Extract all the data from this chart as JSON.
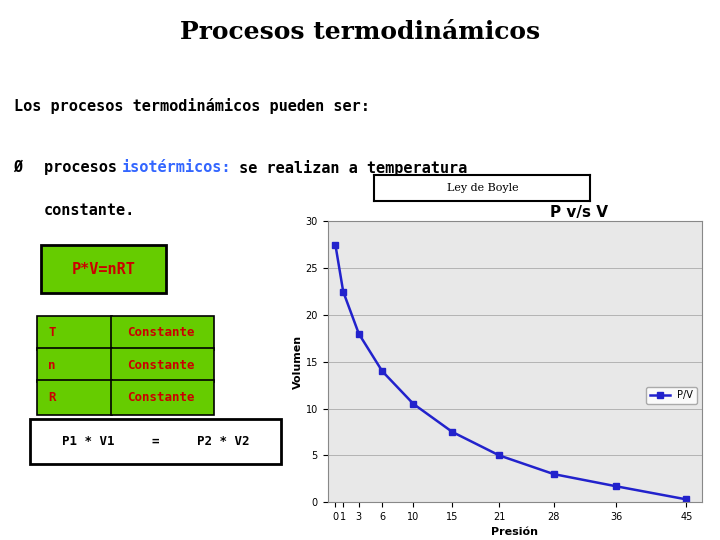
{
  "title": "Procesos termodinámicos",
  "title_bg": "#c8c8a0",
  "slide_bg": "#ffffff",
  "body_text1": "Los procesos termodinámicos pueden ser:",
  "formula_text": "P*V=nRT",
  "formula_bg": "#66cc00",
  "formula_text_color": "#cc0000",
  "table_rows": [
    [
      "T",
      "Constante"
    ],
    [
      "n",
      "Constante"
    ],
    [
      "R",
      "Constante"
    ]
  ],
  "table_bg": "#66cc00",
  "table_text_color": "#cc0000",
  "eq_text": "P1 * V1     =     P2 * V2",
  "chart_title": "P v/s V",
  "chart_xlabel": "Presión",
  "chart_ylabel": "Volumen",
  "chart_legend": "P/V",
  "ley_de_boyle_label": "Ley de Boyle",
  "x_data": [
    0,
    1,
    3,
    6,
    10,
    15,
    21,
    28,
    36,
    45
  ],
  "y_data": [
    27.5,
    22.5,
    18.0,
    14.0,
    10.5,
    7.5,
    5.0,
    3.0,
    1.7,
    0.3
  ],
  "line_color": "#2222cc",
  "marker": "s",
  "x_ticks": [
    0,
    1,
    3,
    6,
    10,
    15,
    21,
    28,
    36,
    45
  ],
  "y_ticks": [
    0,
    5,
    10,
    15,
    20,
    25,
    30
  ],
  "ylim": [
    0,
    30
  ],
  "xlim": [
    -1,
    47
  ],
  "isotermicos_color": "#3366ff",
  "title_fontsize": 18,
  "body_fontsize": 11,
  "formula_fontsize": 11,
  "table_fontsize": 9,
  "eq_fontsize": 9
}
